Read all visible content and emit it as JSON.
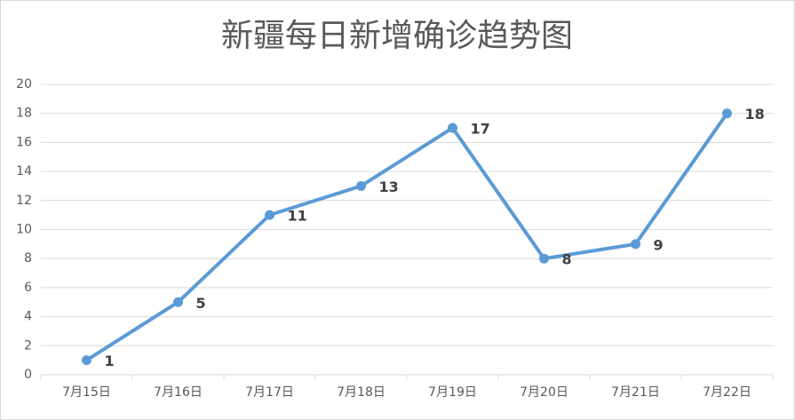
{
  "chart_data": {
    "type": "line",
    "title": "新疆每日新增确诊趋势图",
    "categories": [
      "7月15日",
      "7月16日",
      "7月17日",
      "7月18日",
      "7月19日",
      "7月20日",
      "7月21日",
      "7月22日"
    ],
    "values": [
      1,
      5,
      11,
      13,
      17,
      8,
      9,
      18
    ],
    "color": "#5b9bd5",
    "ylim": [
      0,
      20
    ],
    "yticks": [
      0,
      2,
      4,
      6,
      8,
      10,
      12,
      14,
      16,
      18,
      20
    ],
    "grid": true,
    "data_labels": true
  }
}
